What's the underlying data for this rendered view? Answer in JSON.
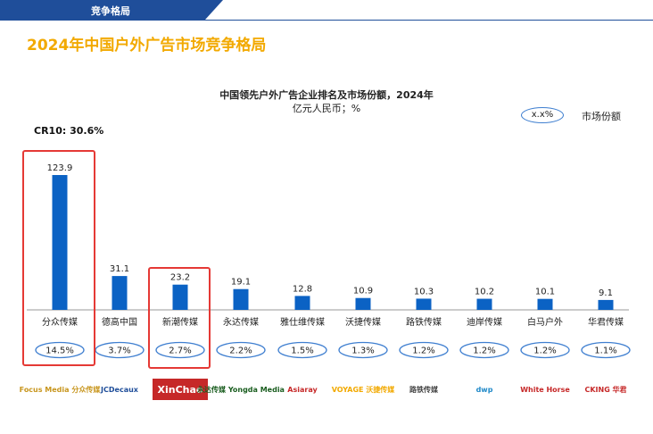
{
  "header": {
    "section": "竞争格局"
  },
  "page_title": "2024年中国户外广告市场竞争格局",
  "chart_data": {
    "type": "bar",
    "title": "中国领先户外广告企业排名及市场份额，2024年",
    "unit_label": "亿元人民币；%",
    "cr10_label": "CR10: 30.6%",
    "legend": {
      "oval_label": "x.x%",
      "label": "市场份额"
    },
    "categories": [
      "分众传媒",
      "德高中国",
      "新潮传媒",
      "永达传媒",
      "雅仕维传媒",
      "沃捷传媒",
      "路铁传媒",
      "迪岸传媒",
      "白马户外",
      "华君传媒"
    ],
    "values": [
      123.9,
      31.1,
      23.2,
      19.1,
      12.8,
      10.9,
      10.3,
      10.2,
      10.1,
      9.1
    ],
    "value_labels": [
      "123.9",
      "31.1",
      "23.2",
      "19.1",
      "12.8",
      "10.9",
      "10.3",
      "10.2",
      "10.1",
      "9.1"
    ],
    "shares": [
      "14.5%",
      "3.7%",
      "2.7%",
      "2.2%",
      "1.5%",
      "1.3%",
      "1.2%",
      "1.2%",
      "1.2%",
      "1.1%"
    ],
    "highlighted": [
      "分众传媒",
      "新潮传媒"
    ],
    "bar_color": "#0b62c4",
    "highlight_color": "#e53935",
    "ylim": [
      0,
      130
    ]
  },
  "logos": [
    {
      "name": "focus-media-logo",
      "text": "Focus Media 分众传媒",
      "color": "#c8961e"
    },
    {
      "name": "jcdecaux-logo",
      "text": "JCDecaux",
      "color": "#1f4e9a"
    },
    {
      "name": "xinchao-logo",
      "text": "XinChao",
      "color": "#ffffff",
      "bg": "#c62828"
    },
    {
      "name": "yongda-media-logo",
      "text": "永达传媒 Yongda Media",
      "color": "#1b5e20"
    },
    {
      "name": "asiaray-logo",
      "text": "Asiaray",
      "color": "#c62828"
    },
    {
      "name": "voyage-logo",
      "text": "VOYAGE 沃捷传媒",
      "color": "#f2a900"
    },
    {
      "name": "lutie-media-logo",
      "text": "路铁传媒",
      "color": "#444444"
    },
    {
      "name": "dwp-logo",
      "text": "dwp",
      "color": "#1e88c8"
    },
    {
      "name": "white-horse-logo",
      "text": "White Horse",
      "color": "#c62828"
    },
    {
      "name": "cking-logo",
      "text": "CKING 华君",
      "color": "#c62828"
    }
  ]
}
